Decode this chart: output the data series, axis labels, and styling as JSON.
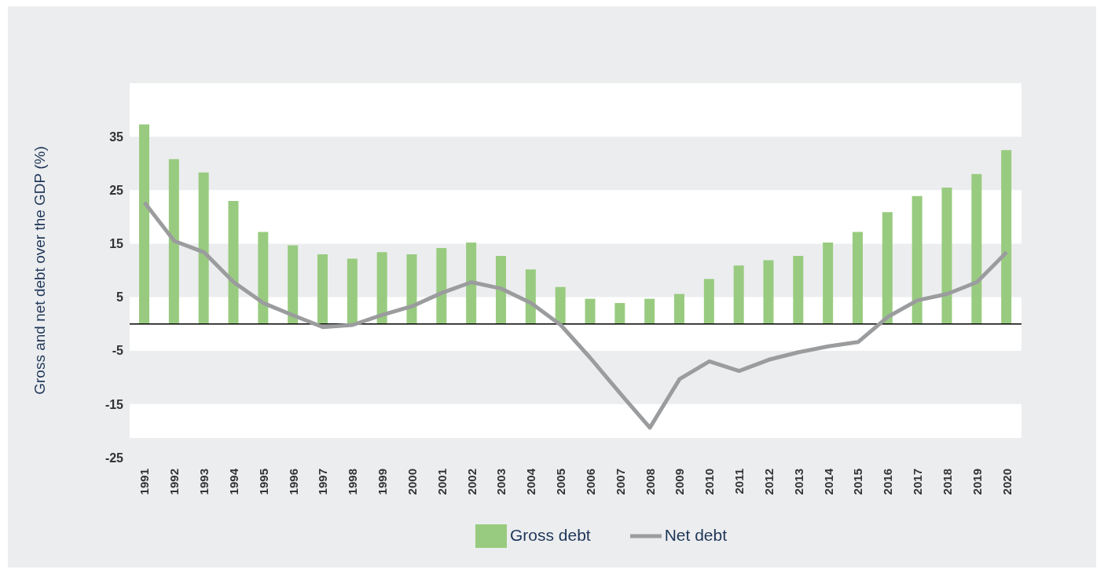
{
  "chart_data": {
    "type": "bar",
    "ylabel": "Gross and net debt over the GDP (%)",
    "categories": [
      "1991",
      "1992",
      "1993",
      "1994",
      "1995",
      "1996",
      "1997",
      "1998",
      "1999",
      "2000",
      "2001",
      "2002",
      "2003",
      "2004",
      "2005",
      "2006",
      "2007",
      "2008",
      "2009",
      "2010",
      "2011",
      "2012",
      "2013",
      "2014",
      "2015",
      "2016",
      "2017",
      "2018",
      "2019",
      "2020"
    ],
    "series": [
      {
        "name": "Gross debt",
        "color": "#98cb7f",
        "values": [
          37.3,
          30.8,
          28.3,
          23.0,
          17.2,
          14.7,
          13.0,
          12.2,
          13.4,
          13.0,
          14.2,
          15.2,
          12.7,
          10.2,
          6.9,
          4.7,
          3.9,
          4.7,
          5.6,
          8.4,
          10.9,
          11.9,
          12.7,
          15.2,
          17.2,
          20.9,
          23.9,
          25.5,
          28.0,
          32.5
        ]
      },
      {
        "name": "Net debt",
        "type": "line",
        "color": "#9b9c9e",
        "values": [
          22.7,
          15.5,
          13.4,
          7.8,
          3.9,
          1.6,
          -0.6,
          -0.2,
          1.7,
          3.3,
          5.8,
          7.8,
          6.6,
          3.9,
          -0.2,
          -6.4,
          -13.0,
          -19.4,
          -10.3,
          -7.0,
          -8.8,
          -6.7,
          -5.3,
          -4.2,
          -3.4,
          1.3,
          4.4,
          5.6,
          7.8,
          13.4
        ]
      }
    ],
    "ylim": [
      -25,
      45
    ],
    "yticks": [
      35,
      25,
      15,
      5,
      -5,
      -15,
      -25
    ],
    "legend": "bottom",
    "marker": "none",
    "ref_lines": [
      {
        "axis": "y",
        "value": 0,
        "color": "#000000"
      }
    ]
  }
}
